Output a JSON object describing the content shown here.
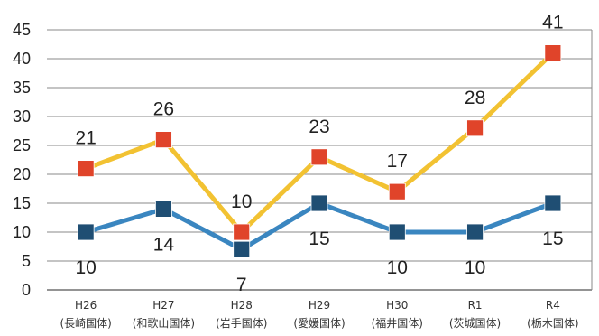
{
  "chart_data": {
    "type": "line",
    "title": "",
    "xlabel": "",
    "ylabel": "",
    "ylim": [
      0,
      45
    ],
    "yticks": [
      "0",
      "5",
      "10",
      "15",
      "20",
      "25",
      "30",
      "35",
      "40",
      "45"
    ],
    "grid": true,
    "legend": "none",
    "categories": [
      {
        "line1": "H26",
        "line2": "(長崎国体)"
      },
      {
        "line1": "H27",
        "line2": "(和歌山国体)"
      },
      {
        "line1": "H28",
        "line2": "(岩手国体)"
      },
      {
        "line1": "H29",
        "line2": "(愛媛国体)"
      },
      {
        "line1": "H30",
        "line2": "(福井国体)"
      },
      {
        "line1": "R1",
        "line2": "(茨城国体)"
      },
      {
        "line1": "R4",
        "line2": "(栃木国体)"
      }
    ],
    "series": [
      {
        "values": [
          21,
          26,
          10,
          23,
          17,
          28,
          41
        ],
        "labels": [
          "21",
          "26",
          "10",
          "23",
          "17",
          "28",
          "41"
        ],
        "line_color": "#f2c232",
        "marker_color": "#e0442a",
        "label_position": "above"
      },
      {
        "values": [
          10,
          14,
          7,
          15,
          10,
          10,
          15
        ],
        "labels": [
          "10",
          "14",
          "7",
          "15",
          "10",
          "10",
          "15"
        ],
        "line_color": "#3a86c0",
        "marker_color": "#1f4e73",
        "label_position": "below"
      }
    ]
  }
}
